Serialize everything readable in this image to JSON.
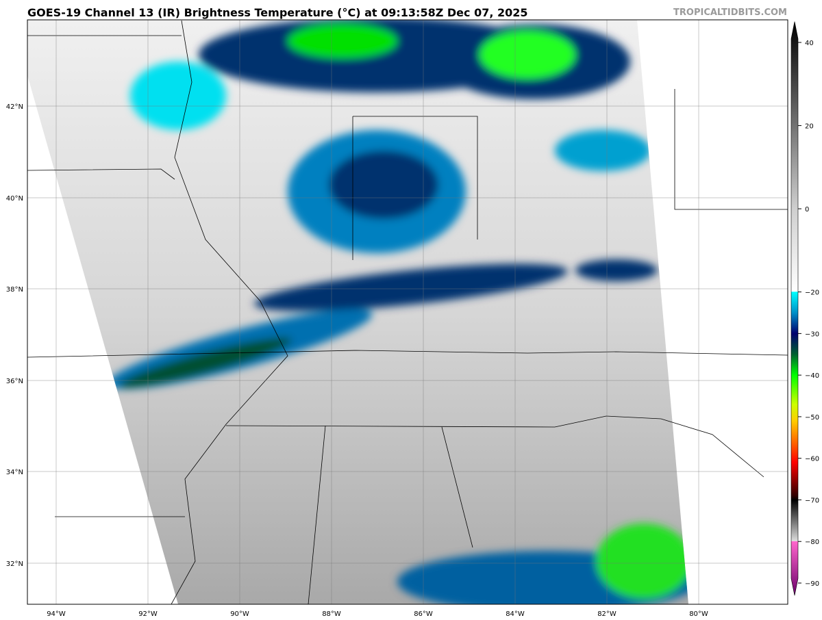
{
  "header": {
    "title": "GOES-19 Channel 13 (IR) Brightness Temperature (°C) at 09:13:58Z Dec 07, 2025",
    "watermark": "TROPICALTIDBITS.COM"
  },
  "map": {
    "lon_labels": [
      "94°W",
      "92°W",
      "90°W",
      "88°W",
      "86°W",
      "84°W",
      "82°W",
      "80°W"
    ],
    "lat_labels": [
      "42°N",
      "40°N",
      "38°N",
      "36°N",
      "34°N",
      "32°N"
    ],
    "grid": true
  },
  "colorbar": {
    "ticks": [
      "40",
      "20",
      "0",
      "−20",
      "−30",
      "−40",
      "−50",
      "−60",
      "−70",
      "−80",
      "−90"
    ],
    "tick_values": [
      40,
      20,
      0,
      -20,
      -30,
      -40,
      -50,
      -60,
      -70,
      -80,
      -90
    ],
    "range": [
      -93,
      45
    ],
    "stops": [
      {
        "t": 45,
        "c": "#000000"
      },
      {
        "t": 0,
        "c": "#cfcfcf"
      },
      {
        "t": -19.9,
        "c": "#ffffff"
      },
      {
        "t": -20,
        "c": "#00ffff"
      },
      {
        "t": -25,
        "c": "#0090c8"
      },
      {
        "t": -30,
        "c": "#00006e"
      },
      {
        "t": -35,
        "c": "#006030"
      },
      {
        "t": -40,
        "c": "#00ff00"
      },
      {
        "t": -47,
        "c": "#ccff00"
      },
      {
        "t": -51,
        "c": "#ffcc00"
      },
      {
        "t": -57,
        "c": "#ff5500"
      },
      {
        "t": -61,
        "c": "#ff0000"
      },
      {
        "t": -69,
        "c": "#300000"
      },
      {
        "t": -70,
        "c": "#000000"
      },
      {
        "t": -79.9,
        "c": "#dddddd"
      },
      {
        "t": -80,
        "c": "#ff66cc"
      },
      {
        "t": -93,
        "c": "#6a006a"
      }
    ]
  },
  "colors": {
    "clear_land": "#c4c4c4",
    "cold_cloud": "#00e000",
    "mid_cloud": "#00306e",
    "cirrus": "#00ffff"
  }
}
